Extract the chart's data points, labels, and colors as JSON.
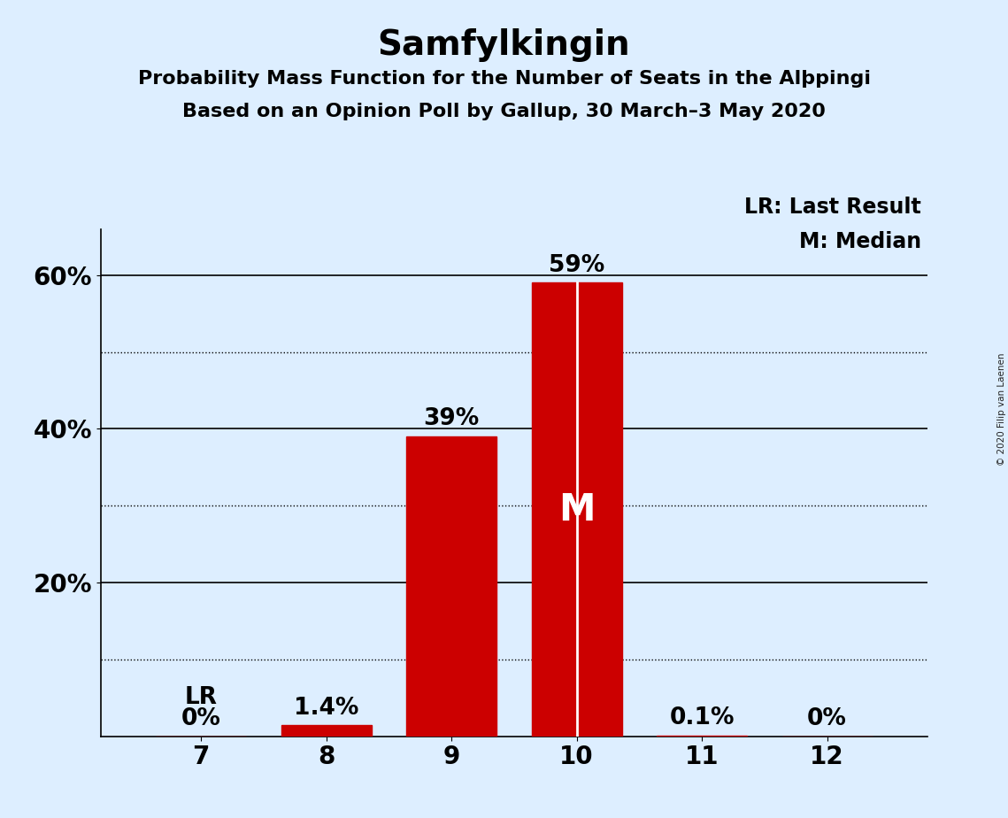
{
  "title": "Samfylkingin",
  "subtitle1": "Probability Mass Function for the Number of Seats in the Alþpingi",
  "subtitle2": "Based on an Opinion Poll by Gallup, 30 March–3 May 2020",
  "copyright": "© 2020 Filip van Laenen",
  "categories": [
    7,
    8,
    9,
    10,
    11,
    12
  ],
  "values": [
    0.0,
    1.4,
    39.0,
    59.0,
    0.1,
    0.0
  ],
  "bar_color": "#cc0000",
  "median_bar": 10,
  "last_result_bar": 7,
  "background_color": "#ddeeff",
  "bar_labels": [
    "0%",
    "1.4%",
    "39%",
    "59%",
    "0.1%",
    "0%"
  ],
  "legend_lr": "LR: Last Result",
  "legend_m": "M: Median",
  "lr_label": "LR",
  "m_label": "M",
  "ylim": [
    0,
    66
  ],
  "solid_lines": [
    20,
    40,
    60
  ],
  "dotted_lines": [
    10,
    30,
    50
  ],
  "ytick_positions": [
    20,
    40,
    60
  ],
  "ytick_labels": [
    "20%",
    "40%",
    "60%"
  ],
  "title_fontsize": 28,
  "subtitle_fontsize": 16,
  "axis_fontsize": 20,
  "label_fontsize": 19,
  "legend_fontsize": 17,
  "bar_width": 0.72
}
